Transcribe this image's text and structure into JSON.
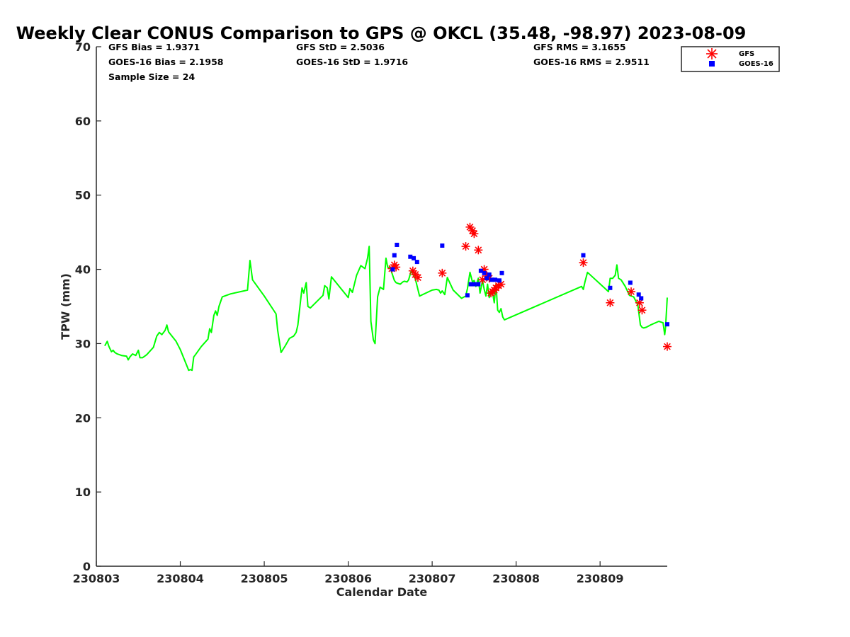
{
  "chart_data": {
    "type": "line",
    "title": "Weekly Clear CONUS Comparison to GPS @ OKCL (35.48, -98.97) 2023-08-09",
    "xlabel": "Calendar Date",
    "ylabel": "TPW (mm)",
    "xlim": [
      230803,
      230809.8
    ],
    "ylim": [
      0,
      70
    ],
    "x_ticks": [
      230803,
      230804,
      230805,
      230806,
      230807,
      230808,
      230809
    ],
    "y_ticks": [
      0,
      10,
      20,
      30,
      40,
      50,
      60,
      70
    ],
    "stats": {
      "gfs_bias": "GFS Bias = 1.9371",
      "goes_bias": "GOES-16 Bias = 2.1958",
      "sample_size": "Sample Size = 24",
      "gfs_std": "GFS StD = 2.5036",
      "goes_std": "GOES-16 StD = 1.9716",
      "gfs_rms": "GFS RMS = 3.1655",
      "goes_rms": "GOES-16 RMS = 2.9511"
    },
    "legend": {
      "position": "top-right",
      "entries": [
        "GFS",
        "GOES-16"
      ]
    },
    "series": [
      {
        "name": "GPS",
        "style": "line",
        "color": "#00ff00",
        "x": [
          230803.1,
          230803.13,
          230803.15,
          230803.18,
          230803.2,
          230803.22,
          230803.25,
          230803.3,
          230803.36,
          230803.38,
          230803.4,
          230803.43,
          230803.47,
          230803.5,
          230803.52,
          230803.55,
          230803.6,
          230803.68,
          230803.72,
          230803.75,
          230803.78,
          230803.82,
          230803.84,
          230803.86,
          230803.95,
          230804.0,
          230804.1,
          230804.12,
          230804.14,
          230804.16,
          230804.18,
          230804.25,
          230804.33,
          230804.35,
          230804.37,
          230804.4,
          230804.42,
          230804.44,
          230804.46,
          230804.5,
          230804.6,
          230804.8,
          230804.83,
          230804.86,
          230805.0,
          230805.14,
          230805.16,
          230805.2,
          230805.25,
          230805.3,
          230805.35,
          230805.38,
          230805.4,
          230805.43,
          230805.45,
          230805.47,
          230805.5,
          230805.52,
          230805.55,
          230805.7,
          230805.72,
          230805.75,
          230805.77,
          230805.8,
          230806.0,
          230806.02,
          230806.05,
          230806.1,
          230806.15,
          230806.2,
          230806.23,
          230806.25,
          230806.27,
          230806.3,
          230806.32,
          230806.35,
          230806.38,
          230806.42,
          230806.45,
          230806.47,
          230806.5,
          230806.55,
          230806.57,
          230806.62,
          230806.65,
          230806.67,
          230806.7,
          230806.72,
          230806.75,
          230806.8,
          230806.85,
          230807.0,
          230807.05,
          230807.08,
          230807.1,
          230807.12,
          230807.15,
          230807.18,
          230807.25,
          230807.35,
          230807.4,
          230807.42,
          230807.45,
          230807.48,
          230807.5,
          230807.52,
          230807.55,
          230807.57,
          230807.6,
          230807.62,
          230807.64,
          230807.66,
          230807.68,
          230807.7,
          230807.72,
          230807.74,
          230807.76,
          230807.78,
          230807.8,
          230807.82,
          230807.84,
          230807.86,
          230808.78,
          230808.8,
          230808.82,
          230808.85,
          230809.1,
          230809.12,
          230809.15,
          230809.18,
          230809.2,
          230809.22,
          230809.25,
          230809.3,
          230809.35,
          230809.4,
          230809.45,
          230809.48,
          230809.5,
          230809.52,
          230809.55,
          230809.6,
          230809.7,
          230809.75,
          230809.77,
          230809.78,
          230809.8
        ],
        "y": [
          29.7,
          30.3,
          29.6,
          28.9,
          29.1,
          28.8,
          28.6,
          28.4,
          28.3,
          27.8,
          28.2,
          28.6,
          28.4,
          29.1,
          28.1,
          28.1,
          28.5,
          29.5,
          31.0,
          31.5,
          31.2,
          31.8,
          32.5,
          31.6,
          30.3,
          29.2,
          26.4,
          26.5,
          26.4,
          28.2,
          28.5,
          29.6,
          30.6,
          32.0,
          31.5,
          33.8,
          34.4,
          33.8,
          35.0,
          36.3,
          36.7,
          37.2,
          41.2,
          38.6,
          36.4,
          34.0,
          31.8,
          28.8,
          29.7,
          30.7,
          31.0,
          31.5,
          32.5,
          35.5,
          37.5,
          36.8,
          38.2,
          35.0,
          34.8,
          36.5,
          37.8,
          37.5,
          36.0,
          39.0,
          36.2,
          37.4,
          36.9,
          39.2,
          40.5,
          40.1,
          41.5,
          43.1,
          33.0,
          30.5,
          30.0,
          36.3,
          37.6,
          37.3,
          41.5,
          40.3,
          40.2,
          38.5,
          38.2,
          38.0,
          38.3,
          38.4,
          38.3,
          38.6,
          39.8,
          38.7,
          36.4,
          37.2,
          37.3,
          37.2,
          36.8,
          37.1,
          36.6,
          38.9,
          37.2,
          36.1,
          36.4,
          37.4,
          39.6,
          38.3,
          38.5,
          37.7,
          38.8,
          36.8,
          38.5,
          37.3,
          36.4,
          38.0,
          36.2,
          37.0,
          36.8,
          35.5,
          38.0,
          34.5,
          34.2,
          34.7,
          33.6,
          33.2,
          37.7,
          37.3,
          38.3,
          39.6,
          37.0,
          38.8,
          38.8,
          39.2,
          40.6,
          38.8,
          38.6,
          37.7,
          36.5,
          36.3,
          35.2,
          32.5,
          32.2,
          32.1,
          32.2,
          32.5,
          33.0,
          32.8,
          31.2,
          32.2,
          36.2
        ]
      },
      {
        "name": "GFS",
        "style": "star",
        "color": "#ff0000",
        "x": [
          230806.52,
          230806.55,
          230806.57,
          230806.77,
          230806.8,
          230806.83,
          230807.12,
          230807.4,
          230807.45,
          230807.48,
          230807.5,
          230807.55,
          230807.6,
          230807.62,
          230807.65,
          230807.68,
          230807.7,
          230807.72,
          230807.74,
          230807.76,
          230807.79,
          230807.82,
          230808.8,
          230809.12,
          230809.37,
          230809.47,
          230809.5,
          230809.8
        ],
        "y": [
          40.1,
          40.6,
          40.3,
          39.8,
          39.3,
          38.9,
          39.5,
          43.1,
          45.7,
          45.2,
          44.8,
          42.6,
          38.6,
          40.0,
          39.1,
          38.8,
          36.8,
          37.0,
          37.2,
          37.5,
          37.8,
          38.0,
          40.9,
          35.5,
          37.0,
          35.5,
          34.5,
          29.6
        ]
      },
      {
        "name": "GOES-16",
        "style": "square",
        "color": "#0000ff",
        "x": [
          230806.53,
          230806.55,
          230806.58,
          230806.74,
          230806.78,
          230806.82,
          230807.12,
          230807.42,
          230807.46,
          230807.5,
          230807.55,
          230807.58,
          230807.62,
          230807.65,
          230807.68,
          230807.71,
          230807.75,
          230807.8,
          230807.83,
          230808.8,
          230809.12,
          230809.36,
          230809.46,
          230809.49,
          230809.8
        ],
        "y": [
          40.0,
          41.9,
          43.3,
          41.7,
          41.5,
          41.0,
          43.2,
          36.5,
          38.0,
          38.0,
          38.0,
          39.8,
          39.5,
          38.8,
          39.3,
          38.6,
          38.6,
          38.5,
          39.5,
          41.9,
          37.5,
          38.2,
          36.6,
          36.1,
          32.6
        ]
      }
    ]
  }
}
